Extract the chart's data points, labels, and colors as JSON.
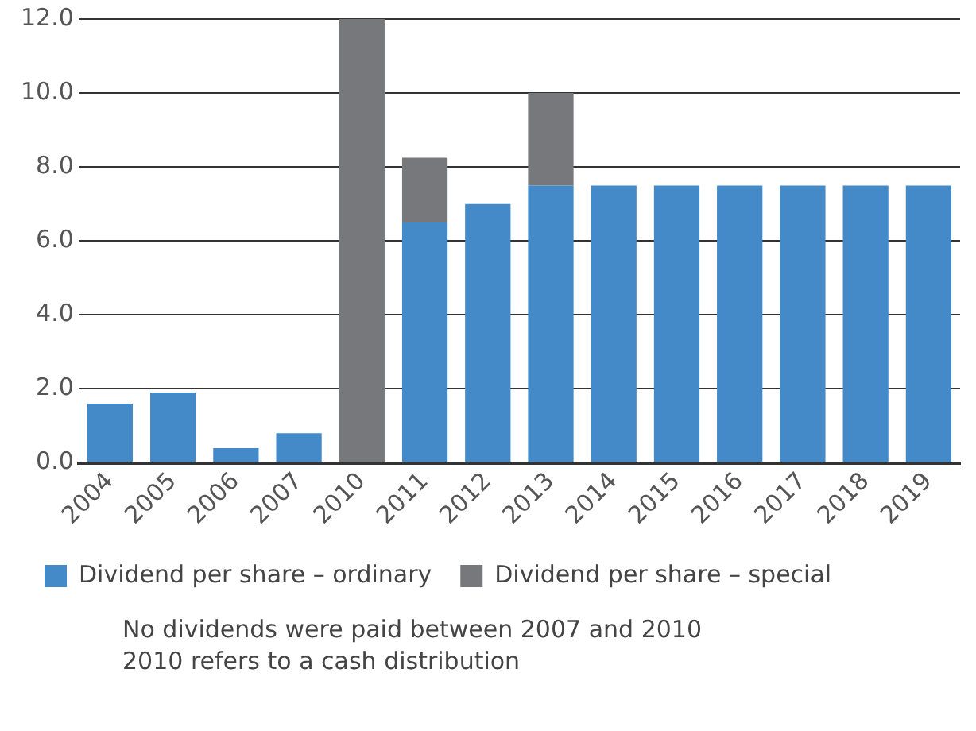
{
  "chart_data": {
    "type": "bar",
    "stacked": true,
    "categories": [
      "2004",
      "2005",
      "2006",
      "2007",
      "2010",
      "2011",
      "2012",
      "2013",
      "2014",
      "2015",
      "2016",
      "2017",
      "2018",
      "2019"
    ],
    "series": [
      {
        "name": "Dividend per share – ordinary",
        "color": "#4489c8",
        "values": [
          1.6,
          1.9,
          0.4,
          0.8,
          0,
          6.5,
          7.0,
          7.5,
          7.5,
          7.5,
          7.5,
          7.5,
          7.5,
          7.5
        ]
      },
      {
        "name": "Dividend per share – special",
        "color": "#77787b",
        "values": [
          0,
          0,
          0,
          0,
          12.0,
          1.75,
          0,
          2.5,
          0,
          0,
          0,
          0,
          0,
          0
        ]
      }
    ],
    "ylim": [
      0,
      12
    ],
    "yticks": [
      {
        "value": 0,
        "label": "0.0"
      },
      {
        "value": 2,
        "label": "2.0"
      },
      {
        "value": 4,
        "label": "4.0"
      },
      {
        "value": 6,
        "label": "6.0"
      },
      {
        "value": 8,
        "label": "8.0"
      },
      {
        "value": 10,
        "label": "10.0"
      },
      {
        "value": 12,
        "label": "12.0"
      }
    ],
    "grid": "y",
    "legend": "bottom left",
    "annotations": [
      "No dividends were paid between 2007 and 2010",
      "2010 refers to a cash distribution"
    ]
  }
}
